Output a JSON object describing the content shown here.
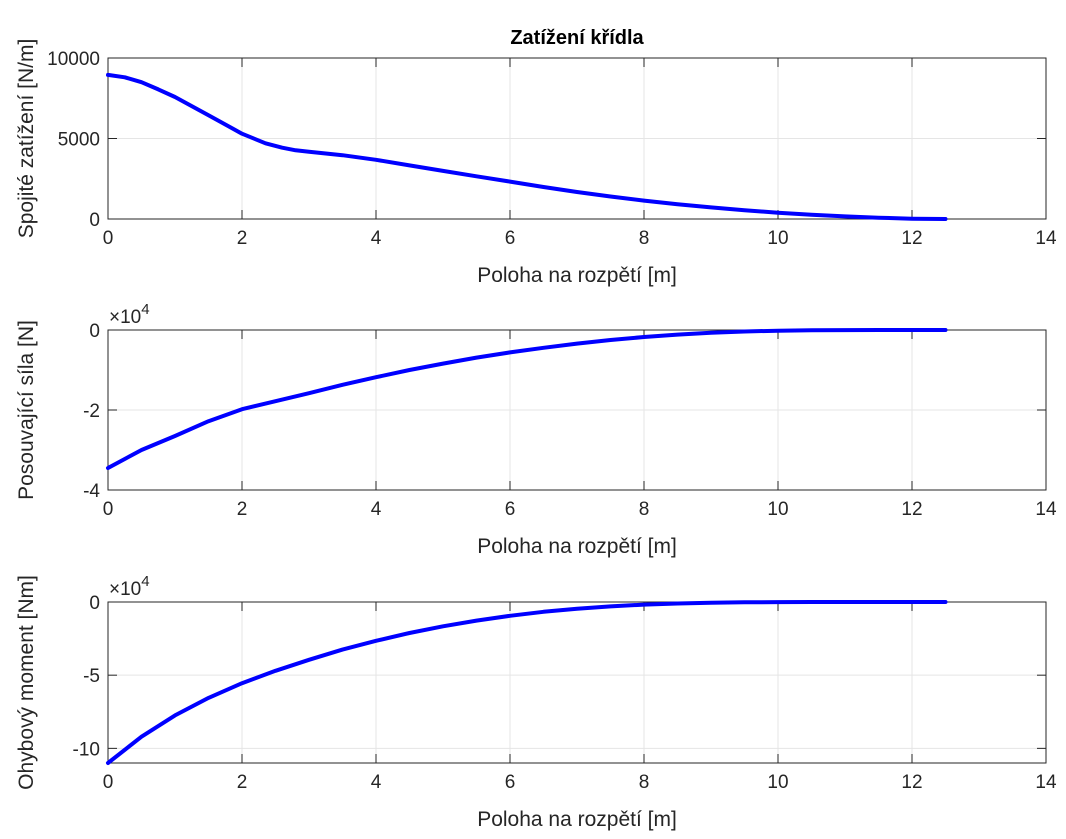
{
  "figure": {
    "title": "Zatížení křídla",
    "line_color": "#0000ff",
    "grid_color": "#e5e5e5",
    "axes_color": "#262626"
  },
  "chart_data": [
    {
      "type": "line",
      "title": "Zatížení křídla",
      "xlabel": "Poloha na rozpětí [m]",
      "ylabel": "Spojité zatížení [N/m]",
      "xlim": [
        0,
        14
      ],
      "ylim": [
        0,
        10000
      ],
      "xticks": [
        "0",
        "2",
        "4",
        "6",
        "8",
        "10",
        "12",
        "14"
      ],
      "yticks": [
        "0",
        "5000",
        "10000"
      ],
      "exponent_label": "",
      "grid": true,
      "series": [
        {
          "color": "#0000ff",
          "x": [
            0,
            0.25,
            0.5,
            0.75,
            1.0,
            1.5,
            2.0,
            2.35,
            2.6,
            2.8,
            3.0,
            3.5,
            4.0,
            4.5,
            5.0,
            5.5,
            6.0,
            6.5,
            7.0,
            7.5,
            8.0,
            8.5,
            9.0,
            9.5,
            10.0,
            10.5,
            11.0,
            11.5,
            12.0,
            12.5
          ],
          "y": [
            8950,
            8800,
            8500,
            8050,
            7580,
            6450,
            5300,
            4700,
            4430,
            4270,
            4180,
            3960,
            3680,
            3330,
            2990,
            2650,
            2320,
            1990,
            1680,
            1400,
            1140,
            910,
            720,
            540,
            390,
            260,
            160,
            80,
            20,
            0
          ]
        }
      ]
    },
    {
      "type": "line",
      "title": "",
      "xlabel": "Poloha na rozpětí [m]",
      "ylabel": "Posouvající síla [N]",
      "xlim": [
        0,
        14
      ],
      "ylim": [
        -40000,
        0
      ],
      "xticks": [
        "0",
        "2",
        "4",
        "6",
        "8",
        "10",
        "12",
        "14"
      ],
      "yticks": [
        "0",
        "-2",
        "-4"
      ],
      "exponent_label": "×10",
      "exponent_power": "4",
      "grid": true,
      "series": [
        {
          "color": "#0000ff",
          "x": [
            0,
            0.5,
            1.0,
            1.5,
            2.0,
            2.5,
            3.0,
            3.5,
            4.0,
            4.5,
            5.0,
            5.5,
            6.0,
            6.5,
            7.0,
            7.5,
            8.0,
            8.5,
            9.0,
            9.5,
            10.0,
            10.5,
            11.0,
            11.5,
            12.0,
            12.5
          ],
          "y": [
            -34500,
            -30000,
            -26500,
            -22800,
            -19800,
            -17800,
            -15800,
            -13700,
            -11800,
            -10000,
            -8400,
            -6900,
            -5600,
            -4450,
            -3400,
            -2500,
            -1750,
            -1150,
            -700,
            -380,
            -180,
            -80,
            -30,
            -10,
            0,
            0
          ]
        }
      ]
    },
    {
      "type": "line",
      "title": "",
      "xlabel": "Poloha na rozpětí [m]",
      "ylabel": "Ohybový moment [Nm]",
      "xlim": [
        0,
        14
      ],
      "ylim": [
        -110000,
        0
      ],
      "xticks": [
        "0",
        "2",
        "4",
        "6",
        "8",
        "10",
        "12",
        "14"
      ],
      "yticks": [
        "0",
        "-5",
        "-10"
      ],
      "exponent_label": "×10",
      "exponent_power": "4",
      "grid": true,
      "series": [
        {
          "color": "#0000ff",
          "x": [
            0,
            0.5,
            1.0,
            1.5,
            2.0,
            2.5,
            3.0,
            3.5,
            4.0,
            4.5,
            5.0,
            5.5,
            6.0,
            6.5,
            7.0,
            7.5,
            8.0,
            8.5,
            9.0,
            9.5,
            10.0,
            10.5,
            11.0,
            11.5,
            12.0,
            12.5
          ],
          "y": [
            -110000,
            -92000,
            -77500,
            -65500,
            -55500,
            -47000,
            -39500,
            -32500,
            -26500,
            -21200,
            -16600,
            -12700,
            -9400,
            -6700,
            -4600,
            -3000,
            -1800,
            -1000,
            -500,
            -200,
            -70,
            -20,
            0,
            0,
            0,
            0
          ]
        }
      ]
    }
  ]
}
